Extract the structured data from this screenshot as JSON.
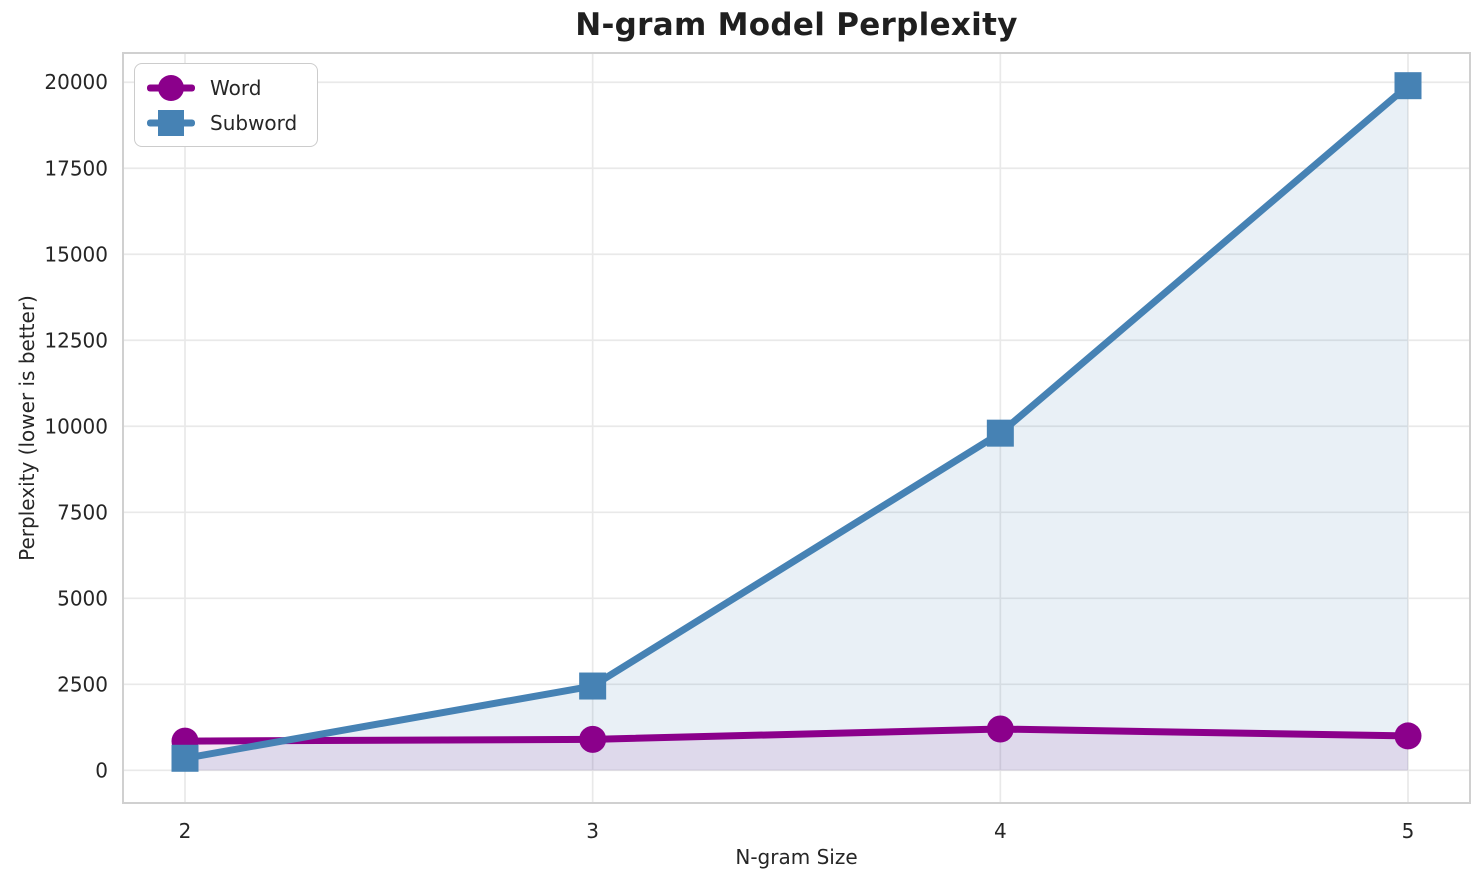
{
  "chart_data": {
    "type": "line",
    "title": "N-gram Model Perplexity",
    "xlabel": "N-gram Size",
    "ylabel": "Perplexity (lower is better)",
    "x": [
      2,
      3,
      4,
      5
    ],
    "xtick_labels": [
      "2",
      "3",
      "4",
      "5"
    ],
    "ytick_values": [
      0,
      2500,
      5000,
      7500,
      10000,
      12500,
      15000,
      17500,
      20000
    ],
    "ytick_labels": [
      "0",
      "2500",
      "5000",
      "7500",
      "10000",
      "12500",
      "15000",
      "17500",
      "20000"
    ],
    "ylim": [
      -950,
      20850
    ],
    "grid": true,
    "legend_position": "upper-left",
    "area_fill": true,
    "colors": {
      "word": "#8B008B",
      "subword": "#4682B4",
      "grid": "#E9E9E9",
      "frame": "#D0D0D0",
      "text": "#262626"
    },
    "series": [
      {
        "name": "Word",
        "marker": "circle",
        "color": "#8B008B",
        "fill_alpha": 0.1,
        "values": [
          850,
          900,
          1200,
          1000
        ]
      },
      {
        "name": "Subword",
        "marker": "square",
        "color": "#4682B4",
        "fill_alpha": 0.12,
        "values": [
          350,
          2450,
          9800,
          19900
        ]
      }
    ]
  }
}
